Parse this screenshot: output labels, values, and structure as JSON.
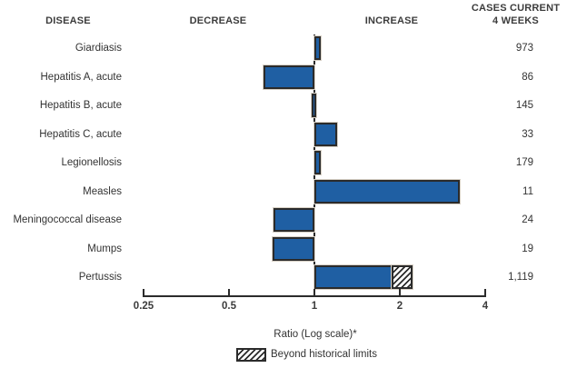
{
  "header": {
    "disease": "DISEASE",
    "decrease": "DECREASE",
    "increase": "INCREASE",
    "cases_line1": "CASES CURRENT",
    "cases_line2": "4 WEEKS"
  },
  "chart_data": {
    "type": "bar",
    "orientation": "horizontal",
    "x_scale": "log2",
    "xlabel": "Ratio (Log scale)*",
    "xlim": [
      0.25,
      4
    ],
    "x_ticks": [
      0.25,
      0.5,
      1,
      2,
      4
    ],
    "tick_labels": [
      "0.25",
      "0.5",
      "1",
      "2",
      "4"
    ],
    "baseline_ratio": 1,
    "legend_label": "Beyond historical limits",
    "legend_swatch": "diagonal-hatch",
    "colors": {
      "bar": "#1f5fa3",
      "bar_border": "#2b2b2b",
      "axis": "#2b2b2b",
      "text": "#333333"
    },
    "rows": [
      {
        "disease": "Giardiasis",
        "ratio": 1.05,
        "direction": "increase",
        "cases": "973"
      },
      {
        "disease": "Hepatitis A, acute",
        "ratio": 0.66,
        "direction": "decrease",
        "cases": "86"
      },
      {
        "disease": "Hepatitis B, acute",
        "ratio": 0.98,
        "direction": "decrease",
        "cases": "145"
      },
      {
        "disease": "Hepatitis C, acute",
        "ratio": 1.2,
        "direction": "increase",
        "cases": "33"
      },
      {
        "disease": "Legionellosis",
        "ratio": 1.05,
        "direction": "increase",
        "cases": "179"
      },
      {
        "disease": "Measles",
        "ratio": 3.25,
        "direction": "increase",
        "cases": "11"
      },
      {
        "disease": "Meningococcal disease",
        "ratio": 0.72,
        "direction": "decrease",
        "cases": "24"
      },
      {
        "disease": "Mumps",
        "ratio": 0.71,
        "direction": "decrease",
        "cases": "19"
      },
      {
        "disease": "Pertussis",
        "ratio": 1.9,
        "direction": "increase",
        "cases": "1,119",
        "beyond_ratio": 2.22
      }
    ]
  }
}
